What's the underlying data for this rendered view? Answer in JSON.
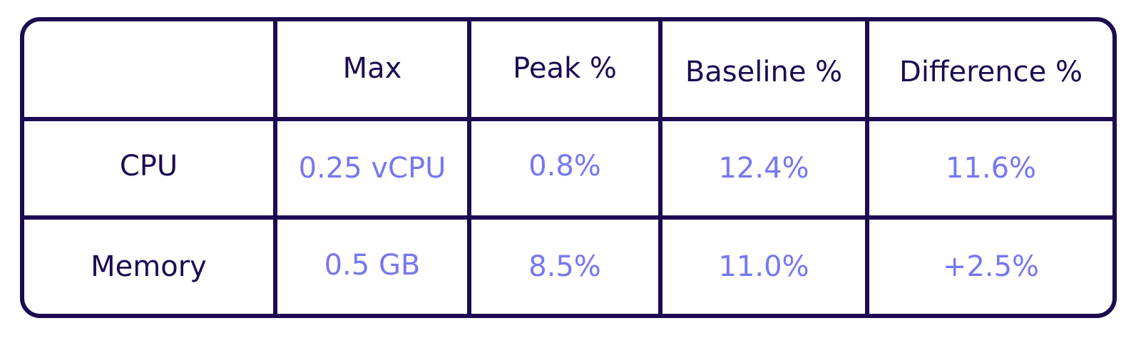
{
  "table": {
    "colors": {
      "border": "#1c0b52",
      "header_text": "#1c0b52",
      "value_text": "#7777f2",
      "background": "#ffffff"
    },
    "headers": [
      "",
      "Max",
      "Peak %",
      "Baseline %",
      "Difference %"
    ],
    "rows": [
      {
        "label": "CPU",
        "max": "0.25 vCPU",
        "peak": "0.8%",
        "baseline": "12.4%",
        "difference": "11.6%"
      },
      {
        "label": "Memory",
        "max": "0.5 GB",
        "peak": "8.5%",
        "baseline": "11.0%",
        "difference": "+2.5%"
      }
    ]
  }
}
